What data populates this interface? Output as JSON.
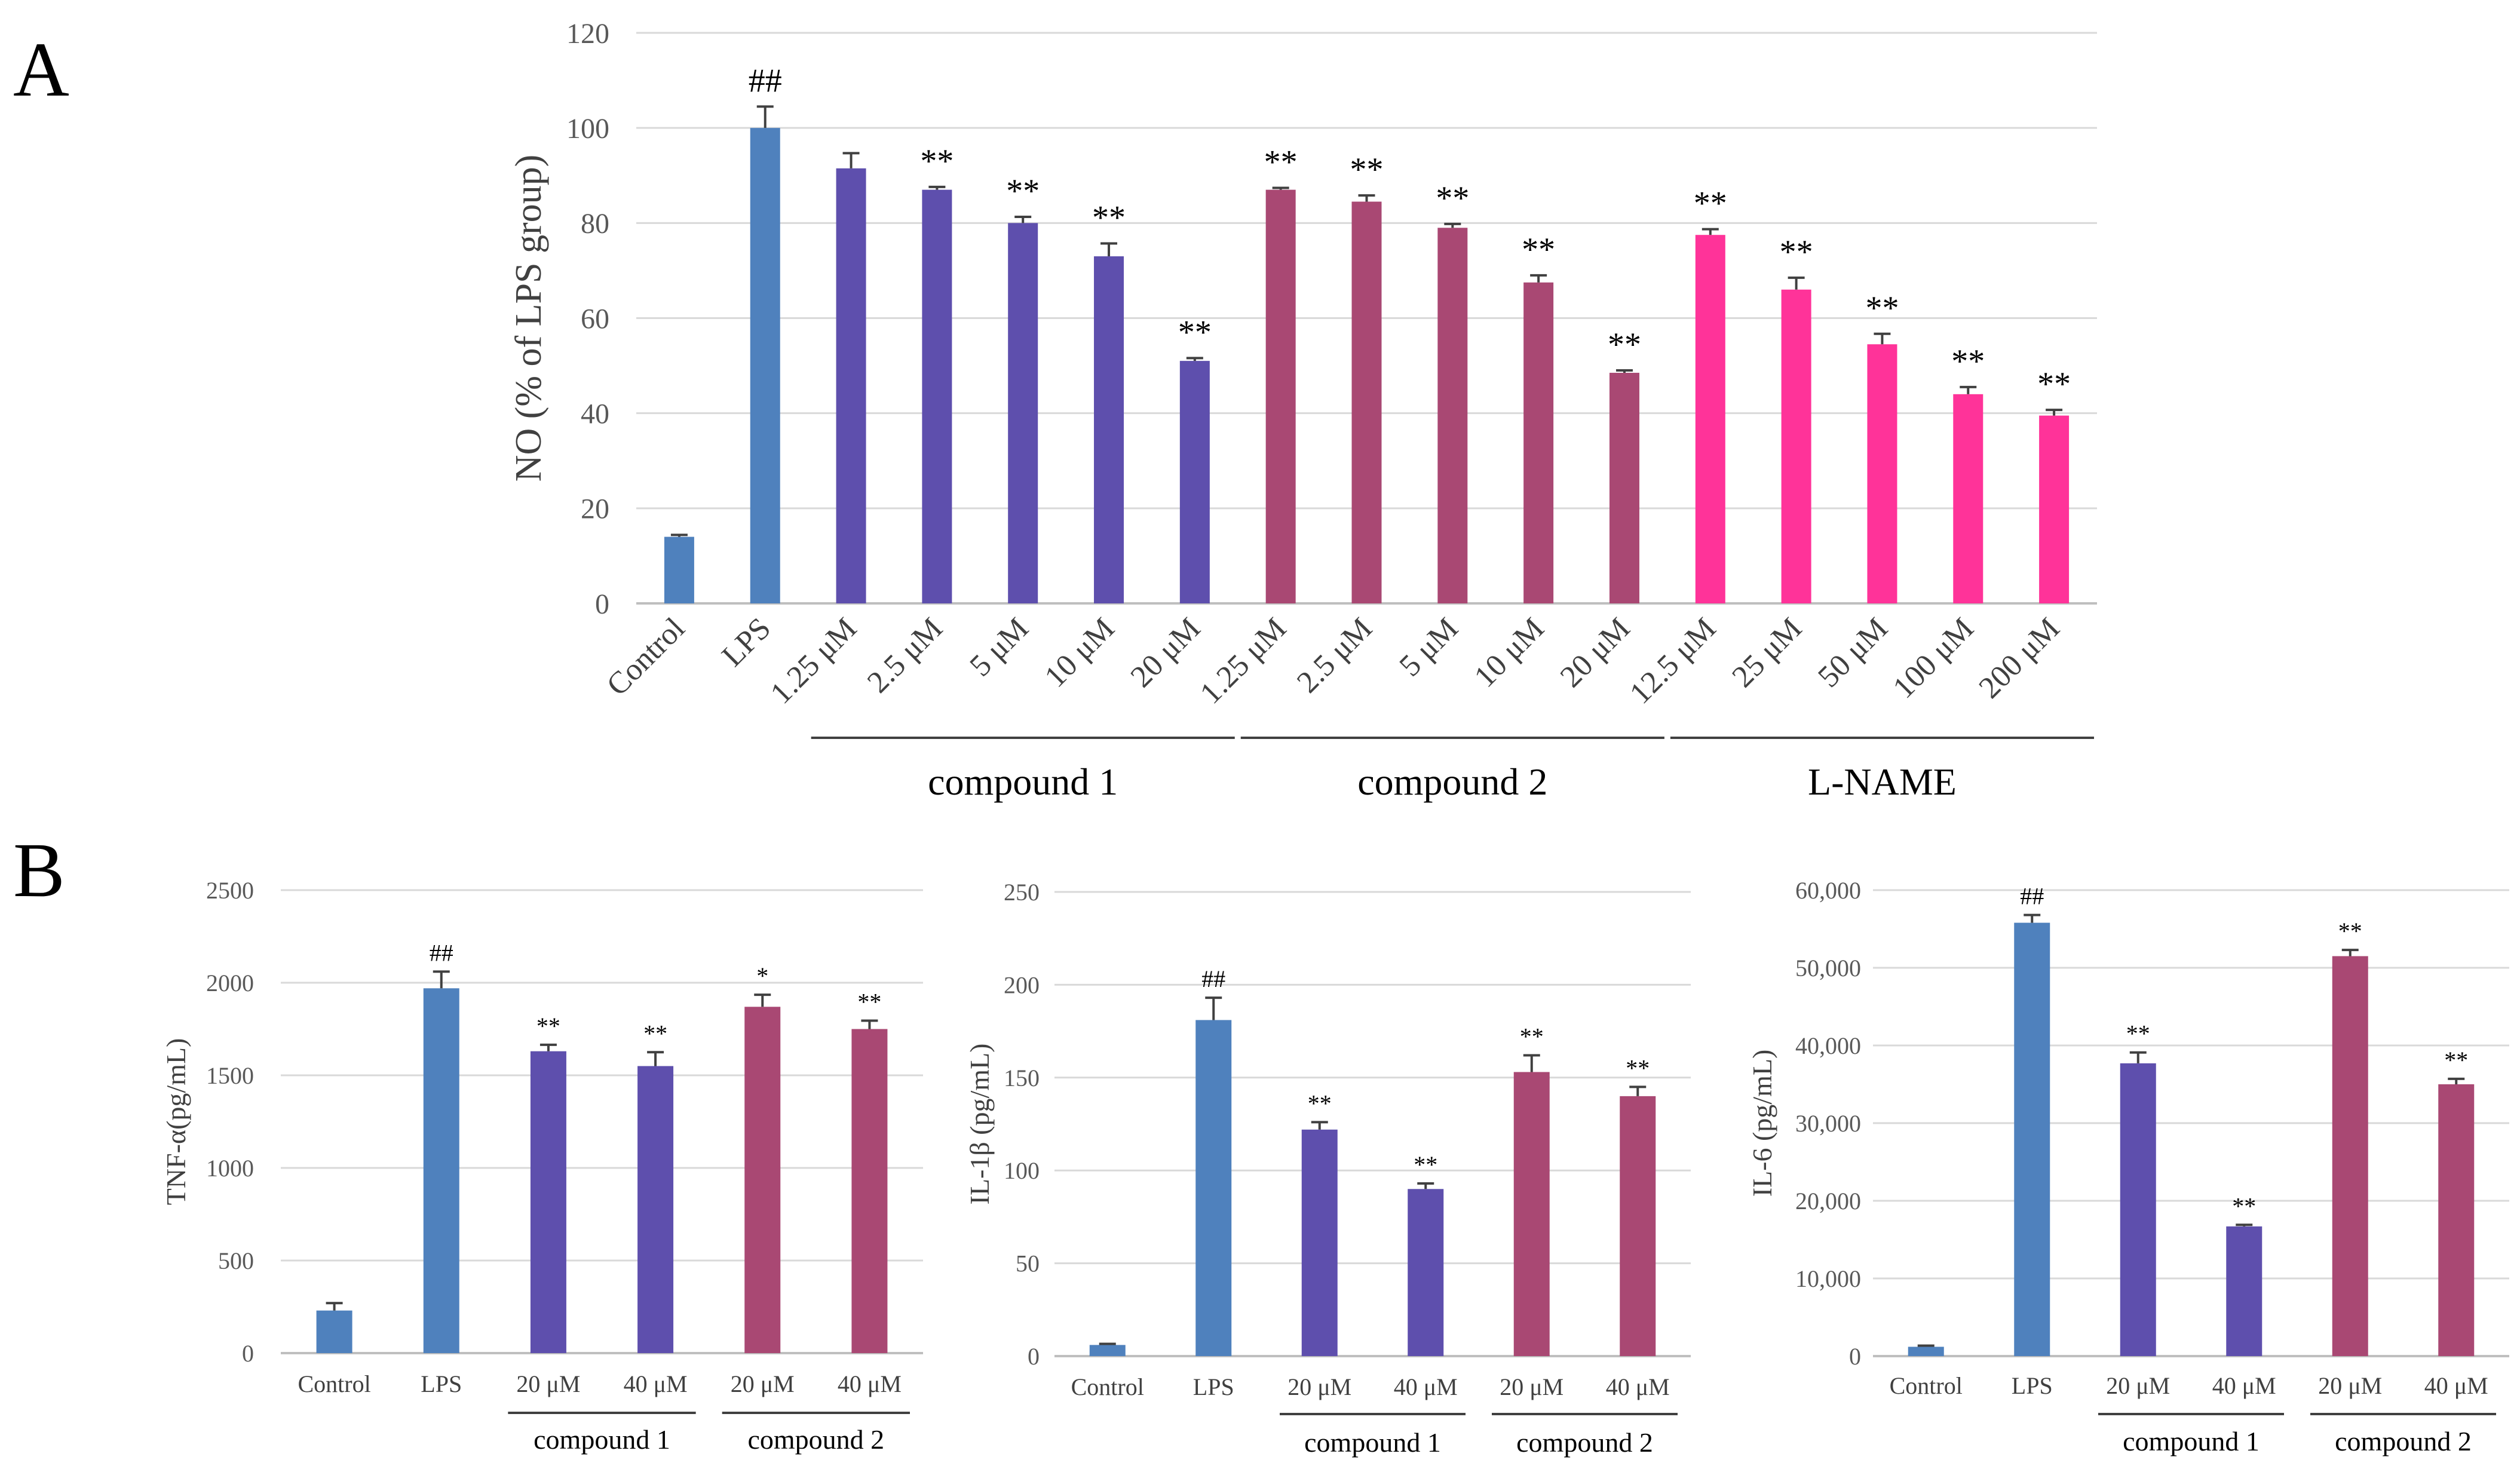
{
  "colors": {
    "control": "#4F81BD",
    "compound1": "#5E4FAD",
    "compound2": "#A94873",
    "lname": "#FF3399",
    "grid": "#D9D9D9",
    "axis": "#BFBFBF",
    "errorbar": "#404040",
    "groupline": "#404040"
  },
  "chart_data": [
    {
      "panel": "A",
      "type": "bar",
      "ylabel": "NO (% of LPS group)",
      "ylim": [
        0,
        120
      ],
      "yticks": [
        "0",
        "20",
        "40",
        "60",
        "80",
        "100",
        "120"
      ],
      "grid": true,
      "categories": [
        "Control",
        "LPS",
        "1.25 μM",
        "2.5 μM",
        "5 μM",
        "10 μM",
        "20 μM",
        "1.25 μM",
        "2.5 μM",
        "5 μM",
        "10 μM",
        "20 μM",
        "12.5 μM",
        "25 μM",
        "50 μM",
        "100 μM",
        "200 μM"
      ],
      "values": [
        14,
        100,
        91.5,
        87,
        80,
        73,
        51,
        87,
        84.5,
        79,
        67.5,
        48.5,
        77.5,
        66,
        54.5,
        44,
        39.5
      ],
      "errors": [
        0.4,
        4.5,
        3.2,
        0.6,
        1.3,
        2.7,
        0.6,
        0.4,
        1.3,
        0.8,
        1.5,
        0.5,
        1.2,
        2.5,
        2.2,
        1.5,
        1.2
      ],
      "bar_groups": [
        "control",
        "control",
        "compound1",
        "compound1",
        "compound1",
        "compound1",
        "compound1",
        "compound2",
        "compound2",
        "compound2",
        "compound2",
        "compound2",
        "lname",
        "lname",
        "lname",
        "lname",
        "lname"
      ],
      "significance": [
        "",
        "##",
        "",
        "**",
        "**",
        "**",
        "**",
        "**",
        "**",
        "**",
        "**",
        "**",
        "**",
        "**",
        "**",
        "**",
        "**"
      ],
      "groups": [
        {
          "label": "compound 1",
          "from": 2,
          "to": 6
        },
        {
          "label": "compound 2",
          "from": 7,
          "to": 11
        },
        {
          "label": "L-NAME",
          "from": 12,
          "to": 16
        }
      ]
    },
    {
      "panel": "B",
      "type": "bar",
      "ylabel": "TNF-α(pg/mL)",
      "ylim": [
        0,
        2500
      ],
      "yticks": [
        "0",
        "500",
        "1000",
        "1500",
        "2000",
        "2500"
      ],
      "grid": true,
      "categories": [
        "Control",
        "LPS",
        "20 μM",
        "40 μM",
        "20 μM",
        "40 μM"
      ],
      "values": [
        230,
        1970,
        1630,
        1550,
        1870,
        1750
      ],
      "errors": [
        40,
        90,
        35,
        75,
        65,
        45
      ],
      "bar_groups": [
        "control",
        "control",
        "compound1",
        "compound1",
        "compound2",
        "compound2"
      ],
      "significance": [
        "",
        "##",
        "**",
        "**",
        "*",
        "**"
      ],
      "groups": [
        {
          "label": "compound 1",
          "from": 2,
          "to": 3
        },
        {
          "label": "compound 2",
          "from": 4,
          "to": 5
        }
      ]
    },
    {
      "panel": "B",
      "type": "bar",
      "ylabel": "IL-1β (pg/mL)",
      "ylim": [
        0,
        250
      ],
      "yticks": [
        "0",
        "50",
        "100",
        "150",
        "200",
        "250"
      ],
      "grid": true,
      "categories": [
        "Control",
        "LPS",
        "20 μM",
        "40 μM",
        "20 μM",
        "40 μM"
      ],
      "values": [
        6,
        181,
        122,
        90,
        153,
        140
      ],
      "errors": [
        0.6,
        12,
        4,
        3,
        9,
        5
      ],
      "bar_groups": [
        "control",
        "control",
        "compound1",
        "compound1",
        "compound2",
        "compound2"
      ],
      "significance": [
        "",
        "##",
        "**",
        "**",
        "**",
        "**"
      ],
      "groups": [
        {
          "label": "compound 1",
          "from": 2,
          "to": 3
        },
        {
          "label": "compound 2",
          "from": 4,
          "to": 5
        }
      ]
    },
    {
      "panel": "B",
      "type": "bar",
      "ylabel": "IL-6 (pg/mL)",
      "ylim": [
        0,
        60000
      ],
      "yticks": [
        "0",
        "10,000",
        "20,000",
        "30,000",
        "40,000",
        "50,000",
        "60,000"
      ],
      "grid": true,
      "categories": [
        "Control",
        "LPS",
        "20 μM",
        "40 μM",
        "20 μM",
        "40 μM"
      ],
      "values": [
        1200,
        55800,
        37700,
        16700,
        51500,
        35000
      ],
      "errors": [
        150,
        1000,
        1400,
        200,
        800,
        700
      ],
      "bar_groups": [
        "control",
        "control",
        "compound1",
        "compound1",
        "compound2",
        "compound2"
      ],
      "significance": [
        "",
        "##",
        "**",
        "**",
        "**",
        "**"
      ],
      "groups": [
        {
          "label": "compound 1",
          "from": 2,
          "to": 3
        },
        {
          "label": "compound 2",
          "from": 4,
          "to": 5
        }
      ]
    }
  ],
  "panels": {
    "a_label": "A",
    "b_label": "B"
  }
}
